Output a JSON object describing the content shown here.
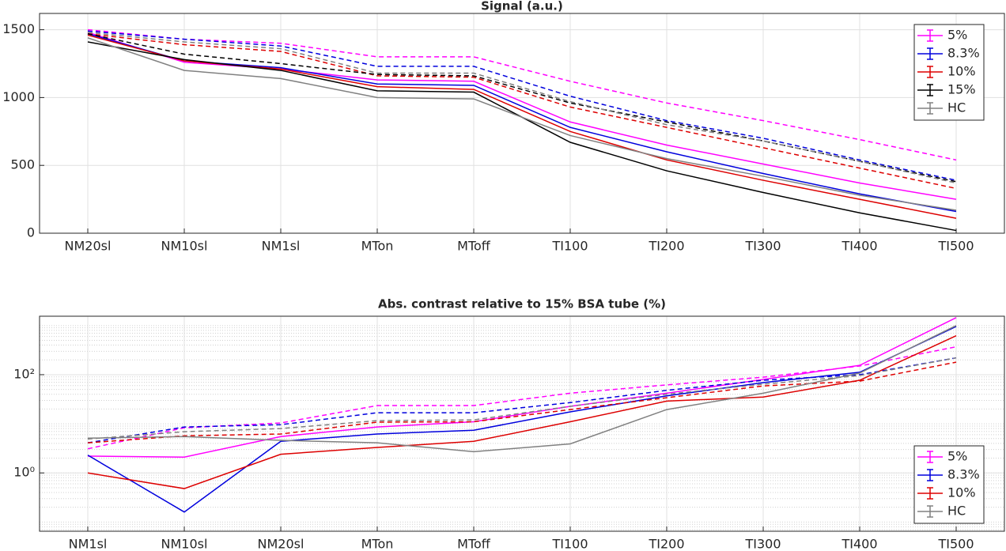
{
  "chart_data": [
    {
      "type": "line",
      "title": "Signal (a.u.)",
      "categories": [
        "NM20sl",
        "NM10sl",
        "NM1sl",
        "MTon",
        "MToff",
        "TI100",
        "TI200",
        "TI300",
        "TI400",
        "TI500"
      ],
      "ylim": [
        0,
        1620
      ],
      "yticks": [
        0,
        500,
        1000,
        1500
      ],
      "grid": true,
      "legend": "upper right",
      "series": [
        {
          "name": "5%",
          "color": "#ff00ff",
          "values": [
            1480,
            1260,
            1210,
            1130,
            1120,
            820,
            650,
            510,
            370,
            250
          ],
          "dashed_values": [
            1500,
            1430,
            1400,
            1300,
            1300,
            1120,
            960,
            830,
            690,
            540
          ]
        },
        {
          "name": "8.3%",
          "color": "#0000dd",
          "values": [
            1470,
            1270,
            1220,
            1100,
            1090,
            780,
            600,
            440,
            290,
            160
          ],
          "dashed_values": [
            1490,
            1430,
            1380,
            1230,
            1230,
            1010,
            830,
            700,
            540,
            390
          ]
        },
        {
          "name": "10%",
          "color": "#dd0000",
          "values": [
            1460,
            1270,
            1210,
            1080,
            1060,
            750,
            540,
            390,
            250,
            110
          ],
          "dashed_values": [
            1470,
            1390,
            1340,
            1160,
            1150,
            930,
            780,
            630,
            480,
            330
          ]
        },
        {
          "name": "15%",
          "color": "#000000",
          "values": [
            1410,
            1280,
            1200,
            1050,
            1040,
            670,
            460,
            300,
            150,
            20
          ],
          "dashed_values": [
            1470,
            1320,
            1250,
            1170,
            1160,
            960,
            820,
            680,
            530,
            380
          ]
        },
        {
          "name": "HC",
          "color": "#808080",
          "values": [
            1440,
            1200,
            1140,
            1000,
            990,
            720,
            550,
            420,
            280,
            170
          ],
          "dashed_values": [
            1480,
            1410,
            1360,
            1180,
            1180,
            970,
            800,
            680,
            530,
            370
          ]
        }
      ]
    },
    {
      "type": "line",
      "title": "Abs. contrast relative to 15% BSA tube (%)",
      "categories": [
        "NM1sl",
        "NM10sl",
        "NM20sl",
        "MTon",
        "MToff",
        "TI100",
        "TI200",
        "TI300",
        "TI400",
        "TI500"
      ],
      "ylim": [
        0.065,
        1550
      ],
      "log_y": true,
      "yticks": [
        {
          "value": 1,
          "label": "10⁰"
        },
        {
          "value": 100,
          "label": "10²"
        }
      ],
      "grid": true,
      "legend": "lower right",
      "series": [
        {
          "name": "5%",
          "color": "#ff00ff",
          "values": [
            2.2,
            2.1,
            5.5,
            8.6,
            11,
            22.7,
            42,
            80,
            155,
            1450
          ],
          "dashed_values": [
            3.1,
            8.3,
            10.4,
            23.5,
            23.5,
            42,
            62,
            89,
            150,
            370
          ]
        },
        {
          "name": "8.3%",
          "color": "#0000dd",
          "values": [
            2.3,
            0.16,
            4.4,
            6.2,
            7.4,
            17.5,
            37,
            69,
            112,
            960
          ],
          "dashed_values": [
            4.1,
            8.6,
            9.6,
            16.8,
            16.8,
            27,
            48,
            77,
            100,
            220
          ]
        },
        {
          "name": "10%",
          "color": "#dd0000",
          "values": [
            1.0,
            0.48,
            2.4,
            3.3,
            4.4,
            11,
            29,
            35,
            77,
            620
          ],
          "dashed_values": [
            4.1,
            5.7,
            6.2,
            10.8,
            11,
            19.5,
            34,
            59,
            74,
            180
          ]
        },
        {
          "name": "HC",
          "color": "#808080",
          "values": [
            5.1,
            5.5,
            4.6,
            4.1,
            2.7,
            3.9,
            19.5,
            42,
            108,
            1000
          ],
          "dashed_values": [
            4.9,
            6.9,
            8.0,
            11.6,
            12,
            22.7,
            40,
            64,
            96,
            220
          ]
        }
      ]
    }
  ]
}
